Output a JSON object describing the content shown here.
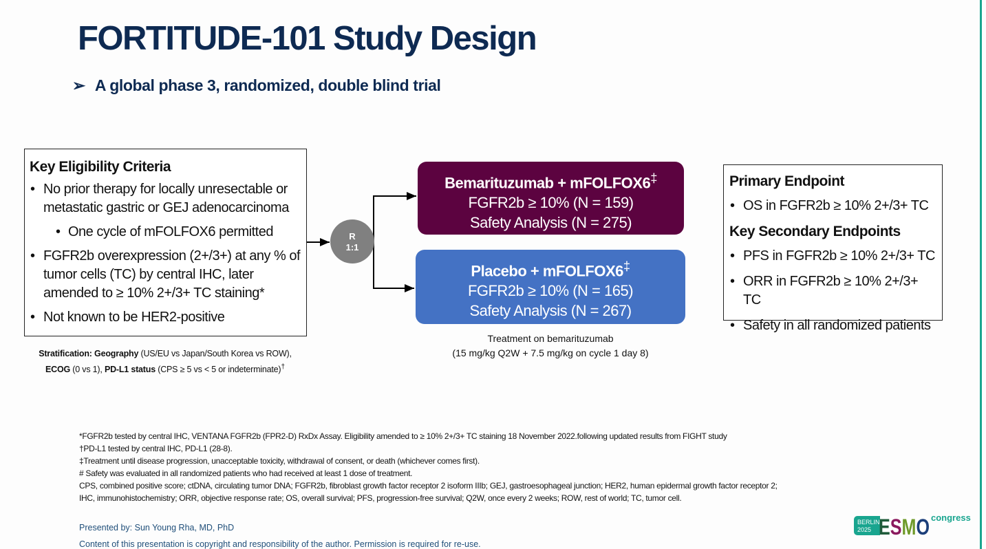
{
  "title": "FORTITUDE-101 Study Design",
  "subtitle": {
    "bullet_icon": "arrowhead-bullet",
    "text": "A global phase 3, randomized, double blind trial"
  },
  "eligibility": {
    "heading": "Key Eligibility Criteria",
    "items": [
      "No prior therapy for locally unresectable or metastatic gastric or GEJ adenocarcinoma",
      "One cycle of mFOLFOX6 permitted",
      "FGFR2b overexpression (2+/3+) at any % of tumor cells (TC) by central IHC, later amended to ≥ 10% 2+/3+ TC staining*",
      "Not known to be HER2-positive"
    ]
  },
  "stratification": {
    "label": "Stratification:",
    "geo_label": "Geography",
    "geo_text": " (US/EU vs Japan/South Korea vs ROW),",
    "ecog_label": "ECOG",
    "ecog_text": " (0 vs 1), ",
    "pdl1_label": "PD-L1 status",
    "pdl1_text": " (CPS ≥ 5 vs < 5 or indeterminate)",
    "pdl1_mark": "†"
  },
  "randomization": {
    "line1": "R",
    "line2": "1:1"
  },
  "arms": [
    {
      "name": "Bemarituzumab + mFOLFOX6",
      "mark": "‡",
      "line2": "FGFR2b ≥ 10% (N = 159)",
      "line3": "Safety Analysis (N = 275)",
      "color": "#5c0340"
    },
    {
      "name": "Placebo + mFOLFOX6",
      "mark": "‡",
      "line2": "FGFR2b ≥ 10% (N = 165)",
      "line3": "Safety Analysis (N = 267)",
      "color": "#4472c4"
    }
  ],
  "treatment": {
    "line1": "Treatment on bemarituzumab",
    "line2": "(15 mg/kg Q2W + 7.5 mg/kg on cycle 1 day 8)"
  },
  "endpoints": {
    "primary_heading": "Primary Endpoint",
    "primary": [
      "OS in FGFR2b ≥ 10% 2+/3+ TC"
    ],
    "secondary_heading": "Key Secondary Endpoints",
    "secondary": [
      "PFS in FGFR2b ≥ 10% 2+/3+ TC",
      "ORR in FGFR2b ≥ 10% 2+/3+ TC",
      "Safety in all randomized patients"
    ]
  },
  "footnotes": [
    "*FGFR2b tested by central IHC, VENTANA FGFR2b (FPR2-D) RxDx Assay. Eligibility amended to ≥ 10% 2+/3+ TC staining 18 November 2022.following updated results from FIGHT study",
    "†PD-L1 tested by central IHC, PD-L1 (28-8).",
    "‡Treatment until disease progression, unacceptable toxicity, withdrawal of consent, or death (whichever comes first).",
    "# Safety was evaluated in all randomized patients who had received at least 1 dose of treatment.",
    "CPS, combined positive score; ctDNA, circulating tumor DNA; FGFR2b, fibroblast growth factor receptor 2 isoform IIIb; GEJ, gastroesophageal junction; HER2, human epidermal growth factor receptor 2;",
    "IHC, immunohistochemistry; ORR, objective response rate; OS, overall survival; PFS, progression-free survival; Q2W, once every 2 weeks; ROW, rest of world; TC, tumor cell."
  ],
  "presented_by": "Presented by: Sun Young Rha, MD, PhD",
  "copyright": "Content of this presentation is copyright and responsibility of the author. Permission is required for re-use.",
  "logo": {
    "city": "BERLIN",
    "year": "2025",
    "brand": "ESMO",
    "suffix": "congress",
    "accent": "#19a58f"
  }
}
